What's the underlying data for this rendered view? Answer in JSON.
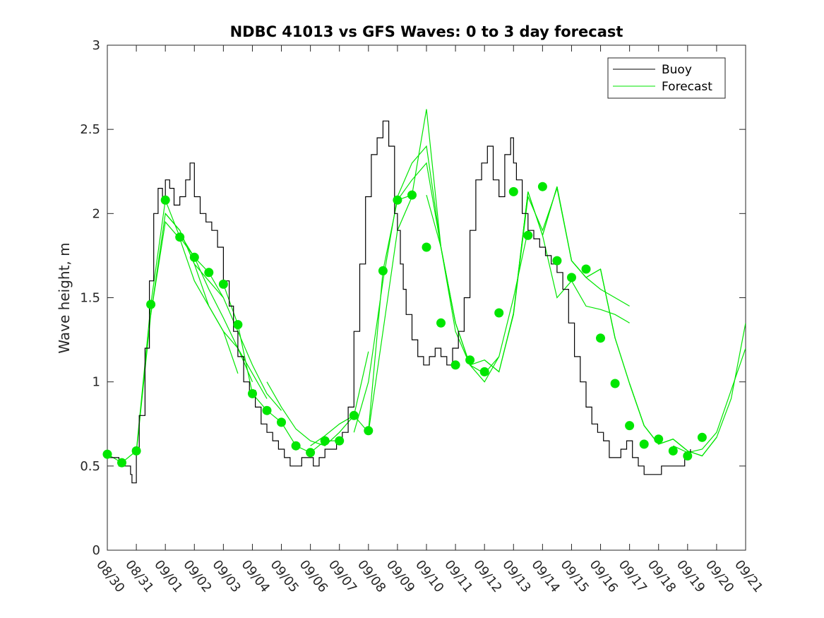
{
  "chart_data": {
    "type": "line",
    "title": "NDBC 41013 vs GFS Waves: 0 to 3 day forecast",
    "xlabel": "",
    "ylabel": "Wave height, m",
    "xlim": [
      0,
      22
    ],
    "ylim": [
      0,
      3
    ],
    "x_tick_labels": [
      "08/30",
      "08/31",
      "09/01",
      "09/02",
      "09/03",
      "09/04",
      "09/05",
      "09/06",
      "09/07",
      "09/08",
      "09/09",
      "09/10",
      "09/11",
      "09/12",
      "09/13",
      "09/14",
      "09/15",
      "09/16",
      "09/17",
      "09/18",
      "09/19",
      "09/20",
      "09/21"
    ],
    "y_ticks": [
      0,
      0.5,
      1,
      1.5,
      2,
      2.5,
      3
    ],
    "y_tick_labels": [
      "0",
      "0.5",
      "1",
      "1.5",
      "2",
      "2.5",
      "3"
    ],
    "legend": {
      "position": "top-right",
      "entries": [
        "Buoy",
        "Forecast"
      ]
    },
    "colors": {
      "buoy": "#000000",
      "forecast": "#00e600",
      "axis": "#262626"
    },
    "buoy": {
      "name": "Buoy",
      "x": [
        0,
        0.4,
        0.7,
        0.8,
        0.85,
        1.0,
        1.1,
        1.3,
        1.45,
        1.6,
        1.75,
        1.9,
        2.0,
        2.15,
        2.3,
        2.5,
        2.7,
        2.85,
        3.0,
        3.2,
        3.4,
        3.6,
        3.8,
        4.0,
        4.2,
        4.35,
        4.5,
        4.7,
        4.9,
        5.1,
        5.3,
        5.5,
        5.7,
        5.9,
        6.1,
        6.3,
        6.5,
        6.7,
        6.9,
        7.1,
        7.3,
        7.5,
        7.7,
        7.9,
        8.1,
        8.3,
        8.5,
        8.7,
        8.9,
        9.1,
        9.3,
        9.5,
        9.7,
        9.9,
        10.0,
        10.1,
        10.2,
        10.3,
        10.5,
        10.7,
        10.9,
        11.1,
        11.3,
        11.5,
        11.7,
        11.9,
        12.1,
        12.3,
        12.5,
        12.7,
        12.9,
        13.1,
        13.3,
        13.5,
        13.7,
        13.9,
        14.0,
        14.1,
        14.3,
        14.5,
        14.7,
        14.9,
        15.1,
        15.3,
        15.5,
        15.7,
        15.9,
        16.1,
        16.3,
        16.5,
        16.7,
        16.9,
        17.1,
        17.3,
        17.5,
        17.7,
        17.9,
        18.1,
        18.3,
        18.5,
        18.7,
        18.9,
        19.1,
        19.3,
        19.5,
        19.7,
        19.9,
        20.1
      ],
      "values": [
        0.55,
        0.5,
        0.5,
        0.45,
        0.4,
        0.6,
        0.8,
        1.2,
        1.6,
        2.0,
        2.15,
        2.1,
        2.2,
        2.15,
        2.05,
        2.1,
        2.2,
        2.3,
        2.1,
        2.0,
        1.95,
        1.9,
        1.8,
        1.6,
        1.45,
        1.3,
        1.15,
        1.0,
        0.95,
        0.85,
        0.75,
        0.7,
        0.65,
        0.6,
        0.55,
        0.5,
        0.5,
        0.55,
        0.55,
        0.5,
        0.55,
        0.6,
        0.6,
        0.65,
        0.7,
        0.85,
        1.3,
        1.7,
        2.1,
        2.35,
        2.45,
        2.55,
        2.4,
        2.0,
        1.9,
        1.7,
        1.55,
        1.4,
        1.25,
        1.15,
        1.1,
        1.15,
        1.2,
        1.15,
        1.1,
        1.2,
        1.3,
        1.5,
        1.9,
        2.2,
        2.3,
        2.4,
        2.2,
        2.1,
        2.35,
        2.45,
        2.3,
        2.2,
        2.0,
        1.9,
        1.85,
        1.8,
        1.75,
        1.7,
        1.65,
        1.55,
        1.35,
        1.15,
        1.0,
        0.85,
        0.75,
        0.7,
        0.65,
        0.55,
        0.55,
        0.6,
        0.65,
        0.55,
        0.5,
        0.45,
        0.45,
        0.45,
        0.5,
        0.5,
        0.5,
        0.5,
        0.55,
        0.6
      ]
    },
    "forecast": {
      "name": "Forecast",
      "series": [
        {
          "x": [
            0,
            0.5,
            1,
            1.5,
            2,
            2.5,
            3
          ],
          "values": [
            0.57,
            0.52,
            0.59,
            1.46,
            2.08,
            1.86,
            1.74
          ]
        },
        {
          "x": [
            1,
            1.5,
            2,
            2.5,
            3,
            3.5,
            4
          ],
          "values": [
            0.58,
            1.4,
            2.0,
            1.9,
            1.7,
            1.6,
            1.5
          ]
        },
        {
          "x": [
            1.5,
            2,
            2.5,
            3,
            3.5,
            4,
            4.5
          ],
          "values": [
            1.4,
            1.95,
            1.85,
            1.6,
            1.45,
            1.3,
            1.05
          ]
        },
        {
          "x": [
            2,
            2.5,
            3,
            3.5,
            4,
            4.5,
            5
          ],
          "values": [
            2.0,
            1.9,
            1.7,
            1.45,
            1.3,
            1.2,
            1.0
          ]
        },
        {
          "x": [
            2.5,
            3,
            3.5,
            4,
            4.5,
            5,
            5.5
          ],
          "values": [
            1.88,
            1.74,
            1.55,
            1.38,
            1.2,
            1.05,
            0.9
          ]
        },
        {
          "x": [
            3,
            3.5,
            4,
            4.5,
            5,
            5.5,
            6
          ],
          "values": [
            1.74,
            1.65,
            1.5,
            1.3,
            1.1,
            0.93,
            0.83
          ]
        },
        {
          "x": [
            4,
            4.5,
            5,
            5.5,
            6,
            6.5,
            7,
            7.5,
            8
          ],
          "values": [
            1.58,
            1.34,
            0.93,
            0.83,
            0.76,
            0.62,
            0.58,
            0.65,
            0.65
          ]
        },
        {
          "x": [
            5.5,
            6,
            6.5,
            7,
            7.5,
            8,
            8.5,
            9
          ],
          "values": [
            1.0,
            0.85,
            0.72,
            0.65,
            0.62,
            0.7,
            0.8,
            1.18
          ]
        },
        {
          "x": [
            7,
            7.5,
            8,
            8.5,
            9,
            9.5,
            10,
            10.5
          ],
          "values": [
            0.62,
            0.68,
            0.75,
            0.8,
            0.7,
            1.3,
            1.9,
            2.1
          ]
        },
        {
          "x": [
            8.5,
            9,
            9.5,
            10,
            10.5,
            11,
            11.5,
            12
          ],
          "values": [
            0.7,
            1.0,
            1.6,
            2.1,
            2.3,
            2.4,
            1.8,
            1.35
          ]
        },
        {
          "x": [
            9,
            9.5,
            10,
            10.5,
            11,
            11.5,
            12,
            12.5
          ],
          "values": [
            0.71,
            1.66,
            2.08,
            2.11,
            2.62,
            1.8,
            1.35,
            1.1
          ]
        },
        {
          "x": [
            10,
            10.5,
            11,
            11.5,
            12,
            12.5,
            13,
            13.5
          ],
          "values": [
            2.08,
            2.2,
            2.3,
            1.8,
            1.3,
            1.1,
            1.05,
            1.15
          ]
        },
        {
          "x": [
            11,
            11.5,
            12,
            12.5,
            13,
            13.5,
            14,
            14.5
          ],
          "values": [
            2.11,
            1.8,
            1.35,
            1.1,
            1.0,
            1.15,
            1.5,
            1.9
          ]
        },
        {
          "x": [
            12,
            12.5,
            13,
            13.5,
            14,
            14.5,
            15,
            15.5
          ],
          "values": [
            1.35,
            1.1,
            1.13,
            1.06,
            1.41,
            2.13,
            1.87,
            2.16
          ]
        },
        {
          "x": [
            13,
            13.5,
            14,
            14.5,
            15,
            15.5,
            16,
            16.5
          ],
          "values": [
            1.13,
            1.06,
            1.4,
            2.1,
            1.9,
            2.15,
            1.72,
            1.62
          ]
        },
        {
          "x": [
            14,
            14.5,
            15,
            15.5,
            16,
            16.5,
            17,
            17.5
          ],
          "values": [
            1.41,
            2.13,
            1.87,
            2.16,
            1.72,
            1.62,
            1.67,
            1.26
          ]
        },
        {
          "x": [
            15,
            15.5,
            16,
            16.5,
            17,
            17.5,
            18
          ],
          "values": [
            1.87,
            1.5,
            1.6,
            1.45,
            1.43,
            1.4,
            1.35
          ]
        },
        {
          "x": [
            15.5,
            16,
            16.5,
            17,
            17.5,
            18
          ],
          "values": [
            2.16,
            1.72,
            1.62,
            1.55,
            1.5,
            1.45
          ]
        },
        {
          "x": [
            16,
            16.5,
            17,
            17.5,
            18,
            18.5,
            19
          ],
          "values": [
            1.72,
            1.62,
            1.67,
            1.26,
            0.99,
            0.74,
            0.63
          ]
        },
        {
          "x": [
            17,
            17.5,
            18,
            18.5,
            19,
            19.5,
            20
          ],
          "values": [
            1.67,
            1.26,
            0.99,
            0.74,
            0.63,
            0.66,
            0.59
          ]
        },
        {
          "x": [
            18,
            18.5,
            19,
            19.5,
            20,
            20.5,
            21
          ],
          "values": [
            0.99,
            0.74,
            0.63,
            0.66,
            0.59,
            0.56,
            0.67
          ]
        },
        {
          "x": [
            19,
            19.5,
            20,
            20.5,
            21,
            21.5,
            22
          ],
          "values": [
            0.63,
            0.66,
            0.59,
            0.56,
            0.67,
            0.9,
            1.35
          ]
        },
        {
          "x": [
            19.5,
            20,
            20.5,
            21,
            21.5,
            22
          ],
          "values": [
            0.62,
            0.58,
            0.6,
            0.7,
            0.95,
            1.2
          ]
        }
      ]
    },
    "forecast_points": {
      "x": [
        0,
        0.5,
        1,
        1.5,
        2,
        2.5,
        3,
        3.5,
        4,
        4.5,
        5,
        5.5,
        6,
        6.5,
        7,
        7.5,
        8,
        8.5,
        9,
        9.5,
        10,
        10.5,
        11,
        11.5,
        12,
        12.5,
        13,
        13.5,
        14,
        14.5,
        15,
        15.5,
        16,
        16.5,
        17,
        17.5,
        18,
        18.5,
        19,
        19.5,
        20,
        20.5
      ],
      "values": [
        0.57,
        0.52,
        0.59,
        1.46,
        2.08,
        1.86,
        1.74,
        1.65,
        1.58,
        1.34,
        0.93,
        0.83,
        0.76,
        0.62,
        0.58,
        0.65,
        0.65,
        0.8,
        0.71,
        1.66,
        2.08,
        2.11,
        1.8,
        1.35,
        1.1,
        1.13,
        1.06,
        1.41,
        2.13,
        1.87,
        2.16,
        1.72,
        1.62,
        1.67,
        1.26,
        0.99,
        0.74,
        0.63,
        0.66,
        0.59,
        0.56,
        0.67
      ]
    }
  }
}
